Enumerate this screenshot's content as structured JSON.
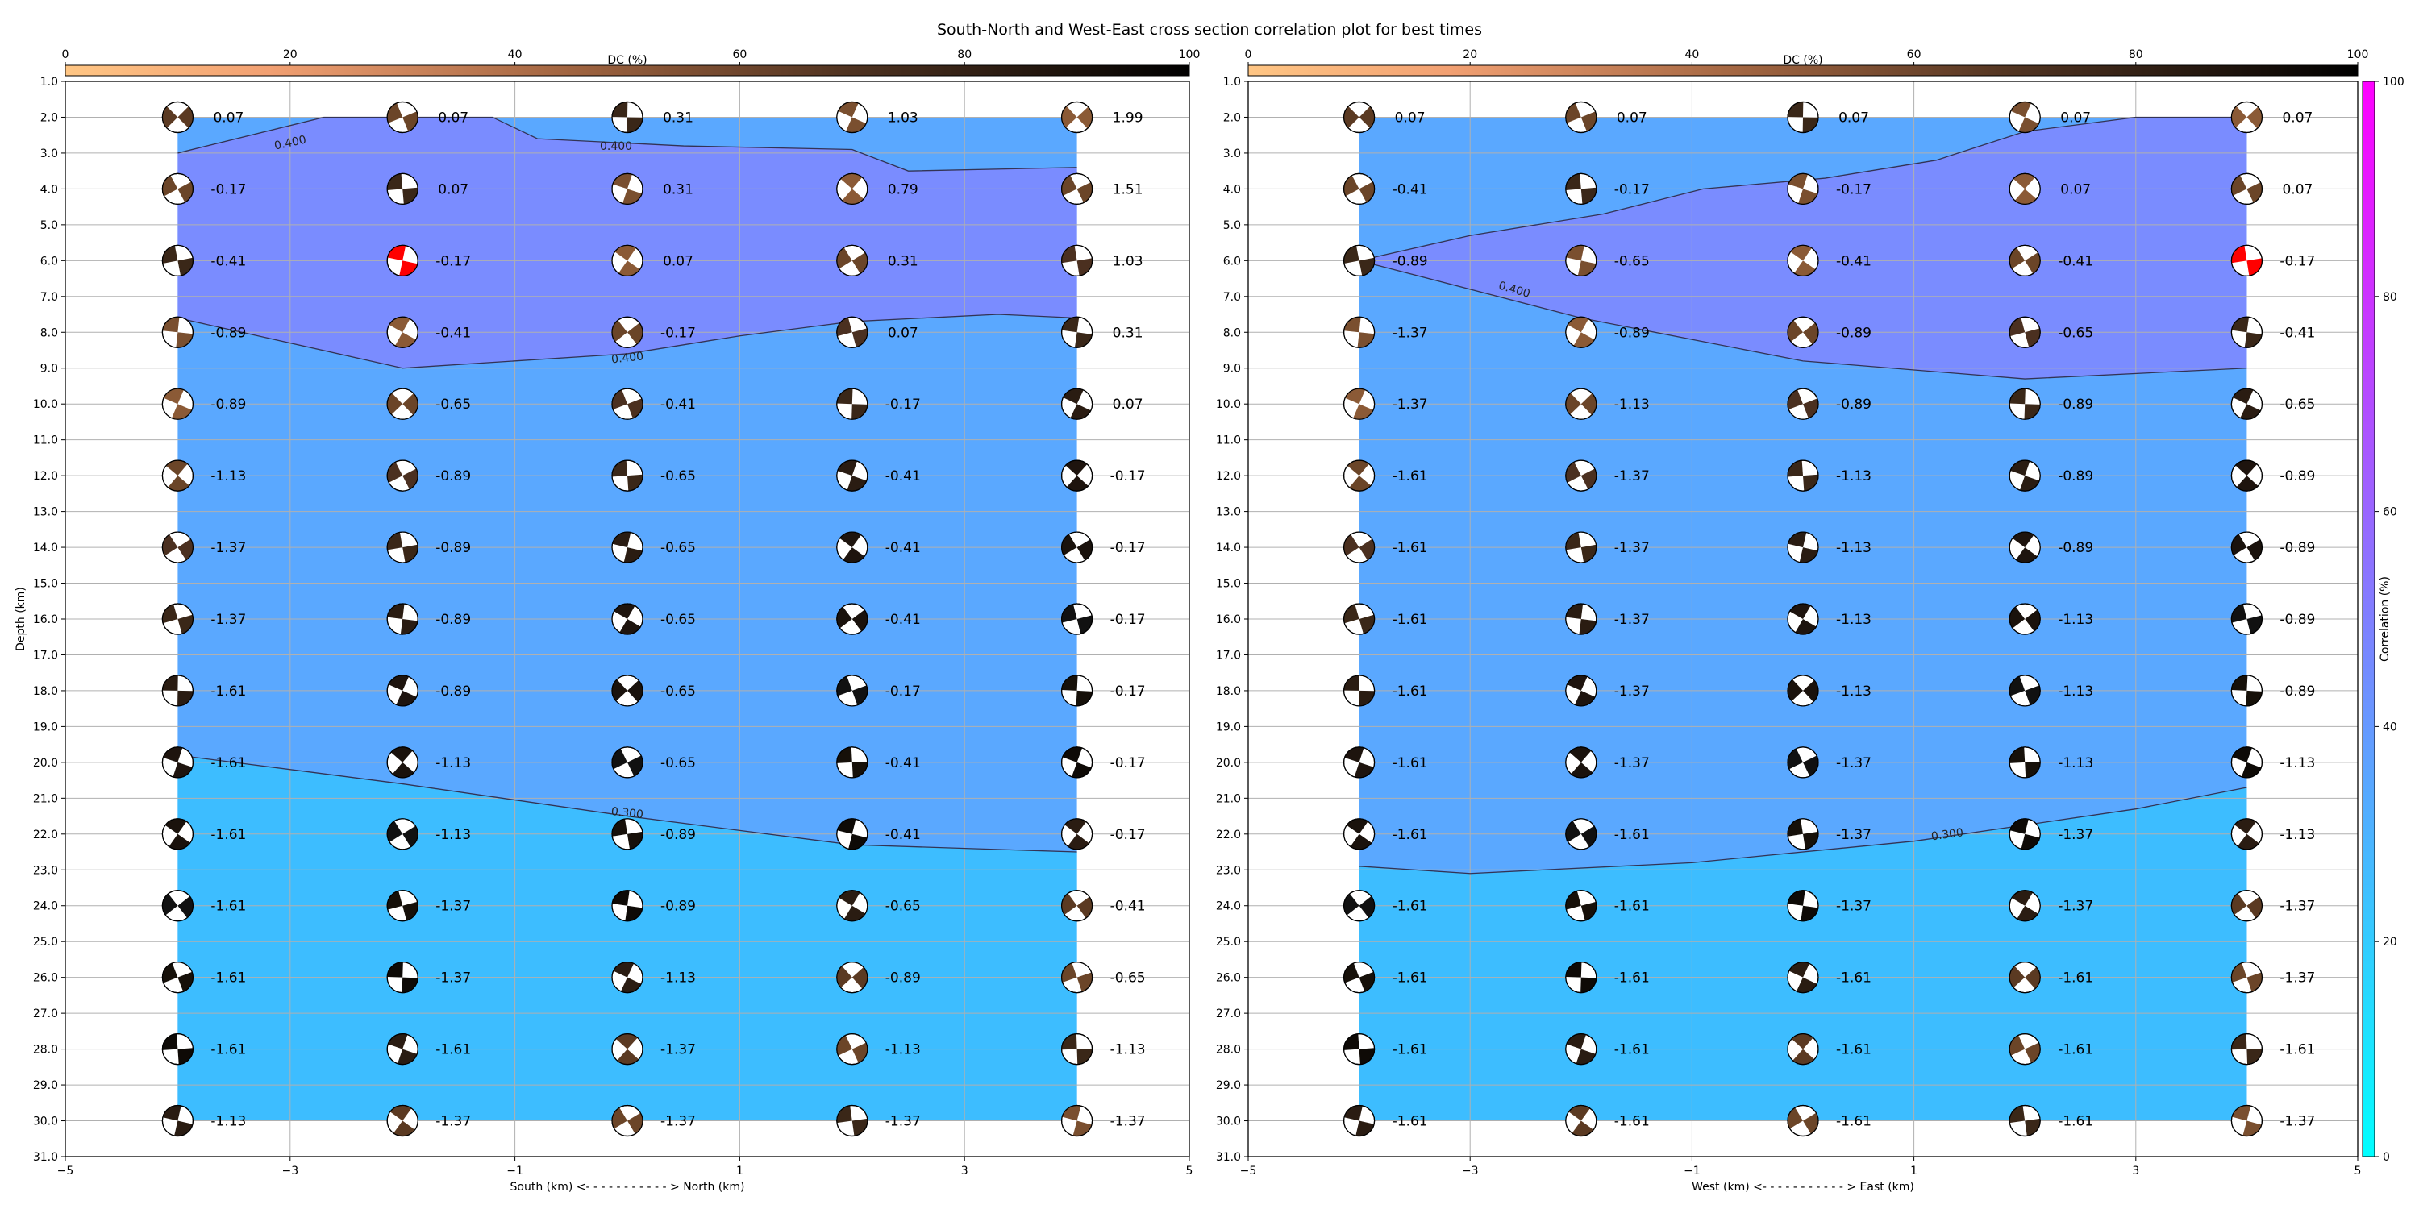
{
  "figure": {
    "title": "South-North and West-East cross section correlation plot for best times"
  },
  "colorbars": {
    "dc_label": "DC (%)",
    "dc_ticks": [
      "0",
      "20",
      "40",
      "60",
      "80",
      "100"
    ],
    "corr_label": "Correlation (%)",
    "corr_ticks": [
      "0",
      "20",
      "40",
      "60",
      "80",
      "100"
    ]
  },
  "chart_data": [
    {
      "type": "heatmap",
      "panel": "south-north",
      "xlabel": "South (km) <- - - - - - - - - - - > North (km)",
      "ylabel": "Depth (km)",
      "xlim": [
        -5,
        5
      ],
      "ylim": [
        31,
        1
      ],
      "x_ticks": [
        "−5",
        "−3",
        "−1",
        "1",
        "3",
        "5"
      ],
      "y_ticks": [
        "1.0",
        "2.0",
        "3.0",
        "4.0",
        "5.0",
        "6.0",
        "7.0",
        "8.0",
        "9.0",
        "10.0",
        "11.0",
        "12.0",
        "13.0",
        "14.0",
        "15.0",
        "16.0",
        "17.0",
        "18.0",
        "19.0",
        "20.0",
        "21.0",
        "22.0",
        "23.0",
        "24.0",
        "25.0",
        "26.0",
        "27.0",
        "28.0",
        "29.0",
        "30.0",
        "31.0"
      ],
      "grid": true,
      "x": [
        -4,
        -2,
        0,
        2,
        4
      ],
      "depths": [
        2,
        4,
        6,
        8,
        10,
        12,
        14,
        16,
        18,
        20,
        22,
        24,
        26,
        28,
        30
      ],
      "labels": [
        [
          "0.07",
          "0.07",
          "0.31",
          "1.03",
          "1.99"
        ],
        [
          "-0.17",
          "0.07",
          "0.31",
          "0.79",
          "1.51"
        ],
        [
          "-0.41",
          "-0.17",
          "0.07",
          "0.31",
          "1.03"
        ],
        [
          "-0.89",
          "-0.41",
          "-0.17",
          "0.07",
          "0.31"
        ],
        [
          "-0.89",
          "-0.65",
          "-0.41",
          "-0.17",
          "0.07"
        ],
        [
          "-1.13",
          "-0.89",
          "-0.65",
          "-0.41",
          "-0.17"
        ],
        [
          "-1.37",
          "-0.89",
          "-0.65",
          "-0.41",
          "-0.17"
        ],
        [
          "-1.37",
          "-0.89",
          "-0.65",
          "-0.41",
          "-0.17"
        ],
        [
          "-1.61",
          "-0.89",
          "-0.65",
          "-0.17",
          "-0.17"
        ],
        [
          "-1.61",
          "-1.13",
          "-0.65",
          "-0.41",
          "-0.17"
        ],
        [
          "-1.61",
          "-1.13",
          "-0.89",
          "-0.41",
          "-0.17"
        ],
        [
          "-1.61",
          "-1.37",
          "-0.89",
          "-0.65",
          "-0.41"
        ],
        [
          "-1.61",
          "-1.37",
          "-1.13",
          "-0.89",
          "-0.65"
        ],
        [
          "-1.61",
          "-1.61",
          "-1.37",
          "-1.13",
          "-1.13"
        ],
        [
          "-1.13",
          "-1.37",
          "-1.37",
          "-1.37",
          "-1.37"
        ]
      ],
      "contour_labels": [
        "0.400",
        "0.400",
        "0.400",
        "0.300"
      ],
      "best_solution": {
        "x": -2,
        "depth": 6
      }
    },
    {
      "type": "heatmap",
      "panel": "west-east",
      "xlabel": "West (km) <- - - - - - - - - - - > East (km)",
      "ylabel": "",
      "xlim": [
        -5,
        5
      ],
      "ylim": [
        31,
        1
      ],
      "x_ticks": [
        "−5",
        "−3",
        "−1",
        "1",
        "3",
        "5"
      ],
      "y_ticks": [
        "1.0",
        "2.0",
        "3.0",
        "4.0",
        "5.0",
        "6.0",
        "7.0",
        "8.0",
        "9.0",
        "10.0",
        "11.0",
        "12.0",
        "13.0",
        "14.0",
        "15.0",
        "16.0",
        "17.0",
        "18.0",
        "19.0",
        "20.0",
        "21.0",
        "22.0",
        "23.0",
        "24.0",
        "25.0",
        "26.0",
        "27.0",
        "28.0",
        "29.0",
        "30.0",
        "31.0"
      ],
      "grid": true,
      "x": [
        -4,
        -2,
        0,
        2,
        4
      ],
      "depths": [
        2,
        4,
        6,
        8,
        10,
        12,
        14,
        16,
        18,
        20,
        22,
        24,
        26,
        28,
        30
      ],
      "labels": [
        [
          "0.07",
          "0.07",
          "0.07",
          "0.07",
          "0.07"
        ],
        [
          "-0.41",
          "-0.17",
          "-0.17",
          "0.07",
          "0.07"
        ],
        [
          "-0.89",
          "-0.65",
          "-0.41",
          "-0.41",
          "-0.17"
        ],
        [
          "-1.37",
          "-0.89",
          "-0.89",
          "-0.65",
          "-0.41"
        ],
        [
          "-1.37",
          "-1.13",
          "-0.89",
          "-0.89",
          "-0.65"
        ],
        [
          "-1.61",
          "-1.37",
          "-1.13",
          "-0.89",
          "-0.89"
        ],
        [
          "-1.61",
          "-1.37",
          "-1.13",
          "-0.89",
          "-0.89"
        ],
        [
          "-1.61",
          "-1.37",
          "-1.13",
          "-1.13",
          "-0.89"
        ],
        [
          "-1.61",
          "-1.37",
          "-1.13",
          "-1.13",
          "-0.89"
        ],
        [
          "-1.61",
          "-1.37",
          "-1.37",
          "-1.13",
          "-1.13"
        ],
        [
          "-1.61",
          "-1.61",
          "-1.37",
          "-1.37",
          "-1.13"
        ],
        [
          "-1.61",
          "-1.61",
          "-1.37",
          "-1.37",
          "-1.37"
        ],
        [
          "-1.61",
          "-1.61",
          "-1.61",
          "-1.61",
          "-1.37"
        ],
        [
          "-1.61",
          "-1.61",
          "-1.61",
          "-1.61",
          "-1.61"
        ],
        [
          "-1.61",
          "-1.61",
          "-1.61",
          "-1.61",
          "-1.37"
        ]
      ],
      "contour_labels": [
        "0.400",
        "0.300"
      ],
      "best_solution": {
        "x": 4,
        "depth": 6
      }
    }
  ]
}
